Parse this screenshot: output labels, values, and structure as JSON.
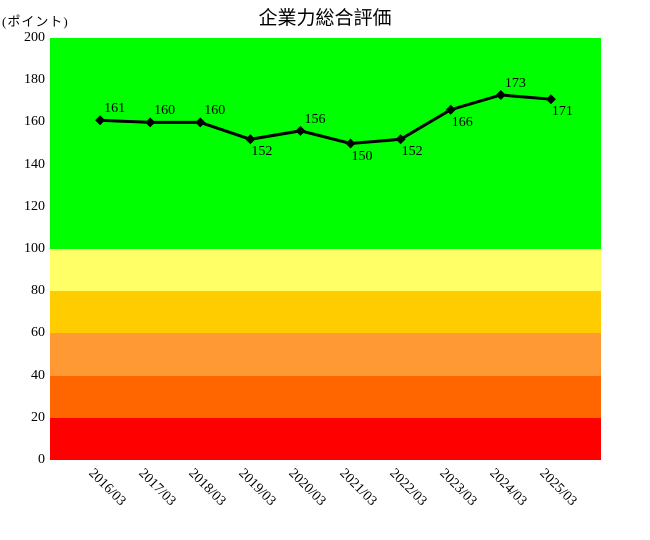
{
  "chart_data": {
    "type": "line",
    "title": "企業力総合評価",
    "unit_label": "(ポイント)",
    "categories": [
      "2016/03",
      "2017/03",
      "2018/03",
      "2019/03",
      "2020/03",
      "2021/03",
      "2022/03",
      "2023/03",
      "2024/03",
      "2025/03"
    ],
    "values": [
      161,
      160,
      160,
      152,
      156,
      150,
      152,
      166,
      173,
      171
    ],
    "ylim": [
      0,
      200
    ],
    "yticks": [
      0,
      20,
      40,
      60,
      80,
      100,
      120,
      140,
      160,
      180,
      200
    ],
    "bands": [
      {
        "from": 100,
        "to": 200,
        "color": "#00FF00"
      },
      {
        "from": 80,
        "to": 100,
        "color": "#FFFF66"
      },
      {
        "from": 60,
        "to": 80,
        "color": "#FFCC00"
      },
      {
        "from": 40,
        "to": 60,
        "color": "#FF9933"
      },
      {
        "from": 20,
        "to": 40,
        "color": "#FF6600"
      },
      {
        "from": 0,
        "to": 20,
        "color": "#FF0000"
      }
    ],
    "line_color": "#000000",
    "line_width": 3,
    "marker": "diamond",
    "marker_color": "#000000",
    "label_placement": [
      "above",
      "above",
      "above",
      "below",
      "above",
      "below",
      "below",
      "below",
      "above",
      "below"
    ],
    "x_label_rotation_deg": 45,
    "grid": "off",
    "legend": "none",
    "background": "#ffffff"
  }
}
